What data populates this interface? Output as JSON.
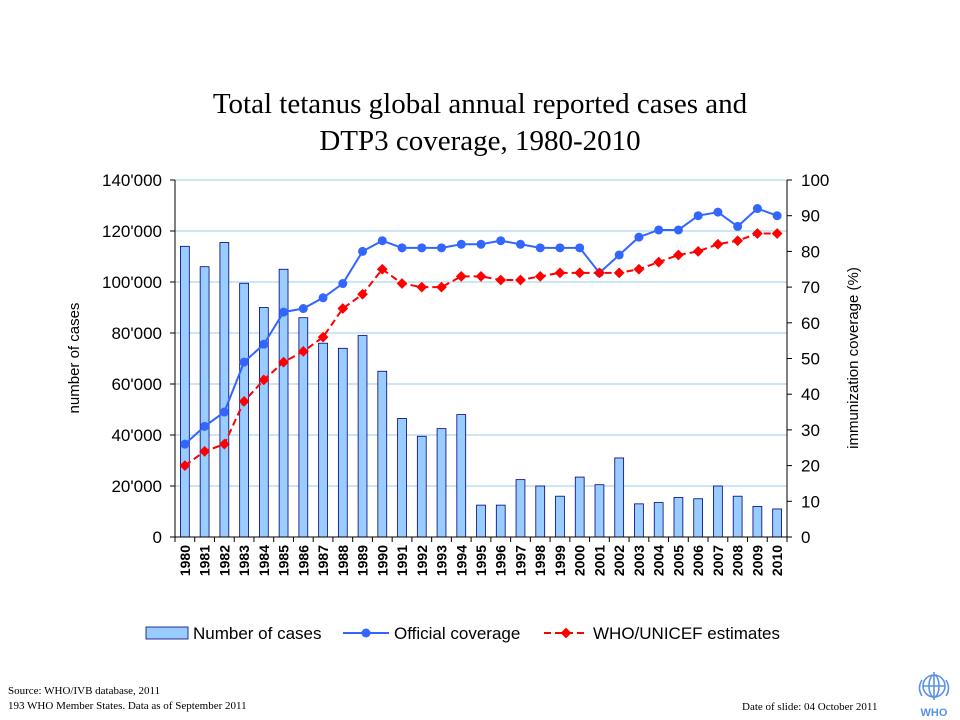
{
  "title_lines": [
    "Total tetanus global annual reported cases and",
    "DTP3 coverage, 1980-2010"
  ],
  "footer": {
    "source_line1": "Source: WHO/IVB database, 2011",
    "source_line2": "193 WHO Member States. Data as of September 2011",
    "date": "Date of slide: 04 October 2011",
    "logo_text": "WHO"
  },
  "colors": {
    "bars_fill": "#99ccff",
    "bars_stroke": "#000080",
    "official": "#3366ff",
    "estimates": "#ff0000",
    "grid": "#99ccee"
  },
  "chart_data": {
    "type": "bar+line",
    "categories": [
      "1980",
      "1981",
      "1982",
      "1983",
      "1984",
      "1985",
      "1986",
      "1987",
      "1988",
      "1989",
      "1990",
      "1991",
      "1992",
      "1993",
      "1994",
      "1995",
      "1996",
      "1997",
      "1998",
      "1999",
      "2000",
      "2001",
      "2002",
      "2003",
      "2004",
      "2005",
      "2006",
      "2007",
      "2008",
      "2009",
      "2010"
    ],
    "left_axis": {
      "label": "number of cases",
      "range": [
        0,
        140000
      ],
      "ticks": [
        0,
        20000,
        40000,
        60000,
        80000,
        100000,
        120000,
        140000
      ],
      "tick_labels": [
        "0",
        "20'000",
        "40'000",
        "60'000",
        "80'000",
        "100'000",
        "120'000",
        "140'000"
      ]
    },
    "right_axis": {
      "label": "immunization coverage (%)",
      "range": [
        0,
        100
      ],
      "ticks": [
        0,
        10,
        20,
        30,
        40,
        50,
        60,
        70,
        80,
        90,
        100
      ],
      "tick_labels": [
        "0",
        "10",
        "20",
        "30",
        "40",
        "50",
        "60",
        "70",
        "80",
        "90",
        "100"
      ]
    },
    "grid": true,
    "legend_position": "bottom",
    "series": [
      {
        "name": "Number of cases",
        "type": "bar",
        "axis": "left",
        "values": [
          114000,
          106000,
          115500,
          99500,
          90000,
          105000,
          86000,
          76000,
          74000,
          79000,
          65000,
          46500,
          39500,
          42500,
          48000,
          12500,
          12500,
          22500,
          20000,
          16000,
          23500,
          20500,
          31000,
          13000,
          13500,
          15500,
          15000,
          20000,
          16000,
          12000,
          11000
        ]
      },
      {
        "name": "Official coverage",
        "type": "line",
        "axis": "right",
        "values": [
          26,
          31,
          35,
          49,
          54,
          63,
          64,
          67,
          71,
          80,
          83,
          81,
          81,
          81,
          82,
          82,
          83,
          82,
          81,
          81,
          81,
          74,
          79,
          84,
          86,
          86,
          90,
          91,
          87,
          92,
          90
        ]
      },
      {
        "name": "WHO/UNICEF estimates",
        "type": "line",
        "dashed": true,
        "axis": "right",
        "values": [
          20,
          24,
          26,
          38,
          44,
          49,
          52,
          56,
          64,
          68,
          75,
          71,
          70,
          70,
          73,
          73,
          72,
          72,
          73,
          74,
          74,
          74,
          74,
          75,
          77,
          79,
          80,
          82,
          83,
          85,
          85
        ]
      }
    ]
  }
}
